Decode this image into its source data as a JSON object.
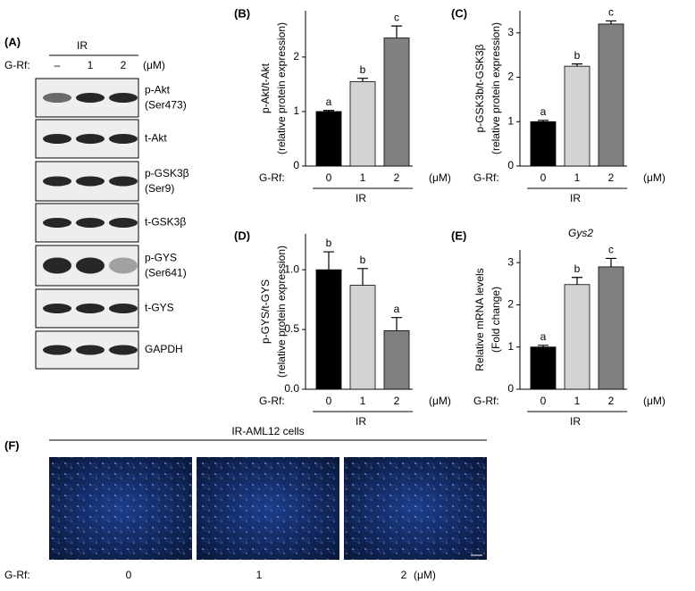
{
  "blot": {
    "label": "(A)",
    "group": "IR",
    "dose_label": "G-Rf:",
    "doses": [
      "–",
      "1",
      "2"
    ],
    "unit": "(μM)",
    "rows": [
      [
        "p-Akt",
        "(Ser473)"
      ],
      [
        "t-Akt"
      ],
      [
        "p-GSK3β",
        "(Ser9)"
      ],
      [
        "t-GSK3β"
      ],
      [
        "p-GYS",
        "(Ser641)"
      ],
      [
        "t-GYS"
      ],
      [
        "GAPDH"
      ]
    ]
  },
  "chart_data": [
    {
      "type": "bar",
      "label": "(B)",
      "y_label": [
        "p-Akt/t-Akt",
        "(relative protein expression)"
      ],
      "x_prefix": "G-Rf:",
      "x_unit": "(μM)",
      "group": "IR",
      "categories": [
        "0",
        "1",
        "2"
      ],
      "values": [
        1.0,
        1.55,
        2.35
      ],
      "errors": [
        0.02,
        0.06,
        0.22
      ],
      "letters": [
        "a",
        "b",
        "c"
      ],
      "colors": [
        "#000000",
        "#d3d3d3",
        "#808080"
      ],
      "ylim": [
        0,
        2.85
      ],
      "yticks": [
        0,
        1,
        2
      ]
    },
    {
      "type": "bar",
      "label": "(C)",
      "y_label": [
        "p-GSK3b/t-GSK3β",
        "(relative protein expression)"
      ],
      "x_prefix": "G-Rf:",
      "x_unit": "(μM)",
      "group": "IR",
      "categories": [
        "0",
        "1",
        "2"
      ],
      "values": [
        1.0,
        2.25,
        3.2
      ],
      "errors": [
        0.03,
        0.05,
        0.07
      ],
      "letters": [
        "a",
        "b",
        "c"
      ],
      "colors": [
        "#000000",
        "#d3d3d3",
        "#808080"
      ],
      "ylim": [
        0,
        3.5
      ],
      "yticks": [
        0,
        1,
        2,
        3
      ]
    },
    {
      "type": "bar",
      "label": "(D)",
      "y_label": [
        "p-GYS/t-GYS",
        "(relative protein expression)"
      ],
      "x_prefix": "G-Rf:",
      "x_unit": "(μM)",
      "group": "IR",
      "categories": [
        "0",
        "1",
        "2"
      ],
      "values": [
        1.0,
        0.87,
        0.49
      ],
      "errors": [
        0.15,
        0.14,
        0.11
      ],
      "letters": [
        "b",
        "b",
        "a"
      ],
      "colors": [
        "#000000",
        "#d3d3d3",
        "#808080"
      ],
      "ylim": [
        0,
        1.3
      ],
      "yticks": [
        {
          "value": 0,
          "label": "0.0"
        },
        0.5,
        {
          "value": 1,
          "label": "1.0"
        }
      ]
    },
    {
      "type": "bar",
      "label": "(E)",
      "title": "Gys2",
      "y_label": [
        "Relative mRNA levels",
        "(Fold change)"
      ],
      "x_prefix": "G-Rf:",
      "x_unit": "(μM)",
      "group": "IR",
      "categories": [
        "0",
        "1",
        "2"
      ],
      "values": [
        1.0,
        2.48,
        2.9
      ],
      "errors": [
        0.04,
        0.17,
        0.2
      ],
      "letters": [
        "a",
        "b",
        "c"
      ],
      "colors": [
        "#000000",
        "#d3d3d3",
        "#808080"
      ],
      "ylim": [
        0,
        3.3
      ],
      "yticks": [
        0,
        1,
        2,
        3
      ]
    }
  ],
  "micrographs": {
    "label": "(F)",
    "title": "IR-AML12 cells",
    "dose_label": "G-Rf:",
    "doses": [
      "0",
      "1",
      "2"
    ],
    "unit": "(μM)"
  }
}
